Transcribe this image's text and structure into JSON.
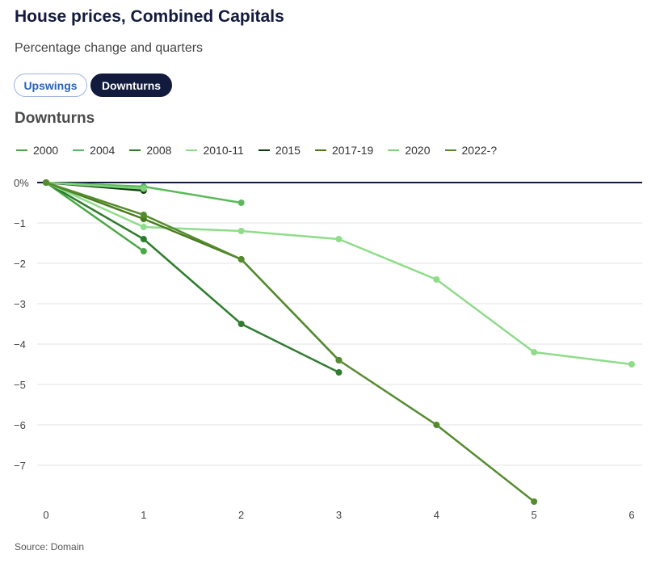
{
  "title": "House prices, Combined Capitals",
  "subtitle": "Percentage change and quarters",
  "toggles": {
    "upswings": "Upswings",
    "downturns": "Downturns"
  },
  "section_title": "Downturns",
  "source": "Source: Domain",
  "chart_data": {
    "type": "line",
    "title": "House prices, Combined Capitals",
    "subtitle": "Percentage change and quarters",
    "xlabel": "",
    "ylabel": "",
    "xlim": [
      0,
      6
    ],
    "ylim": [
      -8,
      0
    ],
    "x_ticks": [
      0,
      1,
      2,
      3,
      4,
      5,
      6
    ],
    "y_ticks": [
      0,
      -1,
      -2,
      -3,
      -4,
      -5,
      -6,
      -7
    ],
    "y_tick_labels": [
      "0%",
      "−1",
      "−2",
      "−3",
      "−4",
      "−5",
      "−6",
      "−7"
    ],
    "grid": true,
    "legend_position": "top-left",
    "series": [
      {
        "name": "2000",
        "color": "#4aa845",
        "x": [
          0,
          1
        ],
        "values": [
          0,
          -1.7
        ]
      },
      {
        "name": "2004",
        "color": "#5cb85c",
        "x": [
          0,
          1,
          2
        ],
        "values": [
          0,
          -0.1,
          -0.5
        ]
      },
      {
        "name": "2008",
        "color": "#2e7d2e",
        "x": [
          0,
          1,
          2,
          3
        ],
        "values": [
          0,
          -1.4,
          -3.5,
          -4.7
        ]
      },
      {
        "name": "2010-11",
        "color": "#8fdc8a",
        "x": [
          0,
          1,
          2,
          3,
          4,
          5,
          6
        ],
        "values": [
          0,
          -1.1,
          -1.2,
          -1.4,
          -2.4,
          -4.2,
          -4.5
        ]
      },
      {
        "name": "2015",
        "color": "#0f3d0f",
        "x": [
          0,
          1
        ],
        "values": [
          0,
          -0.2
        ]
      },
      {
        "name": "2017-19",
        "color": "#4a7c1f",
        "x": [
          0,
          1,
          2,
          3
        ],
        "values": [
          0,
          -0.9,
          -1.9,
          -4.4
        ]
      },
      {
        "name": "2020",
        "color": "#7fd27a",
        "x": [
          0,
          1
        ],
        "values": [
          0,
          -0.15
        ]
      },
      {
        "name": "2022-?",
        "color": "#558b2f",
        "x": [
          0,
          1,
          2,
          3,
          4,
          5
        ],
        "values": [
          0,
          -0.8,
          -1.9,
          -4.4,
          -6.0,
          -7.9
        ]
      }
    ]
  }
}
